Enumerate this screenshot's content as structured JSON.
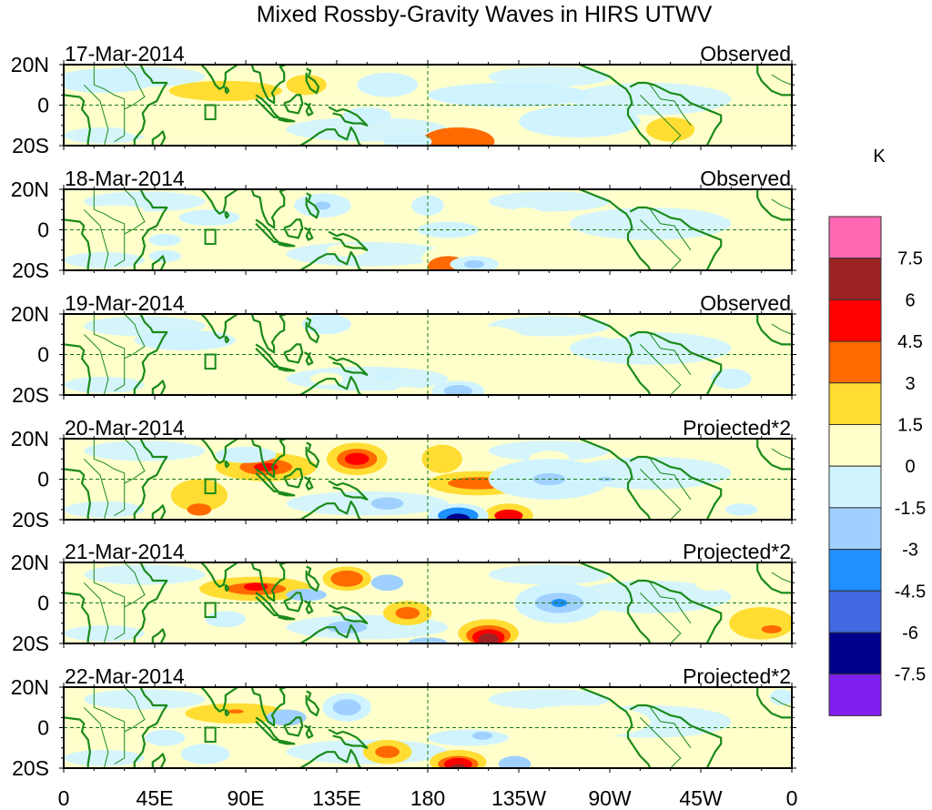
{
  "chart_data": {
    "type": "heatmap",
    "title": "Mixed Rossby-Gravity Waves in HIRS UTWV",
    "units": "K",
    "x_axis": {
      "range_deg_east": [
        0,
        360
      ],
      "tick_values": [
        0,
        45,
        90,
        135,
        180,
        225,
        270,
        315,
        360
      ],
      "tick_labels": [
        "0",
        "45E",
        "90E",
        "135E",
        "180",
        "135W",
        "90W",
        "45W",
        "0"
      ]
    },
    "y_axis": {
      "range_deg": [
        -20,
        20
      ],
      "tick_values": [
        20,
        0,
        -20
      ],
      "tick_labels": [
        "20N",
        "0",
        "20S"
      ]
    },
    "colorbar": {
      "levels": [
        "7.5",
        "6",
        "4.5",
        "3",
        "1.5",
        "0",
        "-1.5",
        "-3",
        "-4.5",
        "-6",
        "-7.5"
      ],
      "level_values": [
        7.5,
        6,
        4.5,
        3,
        1.5,
        0,
        -1.5,
        -3,
        -4.5,
        -6,
        -7.5
      ],
      "colors": [
        "#ff69b4",
        "#9b2323",
        "#ff0000",
        "#ff6a00",
        "#ffdd33",
        "#ffffcc",
        "#d0f4ff",
        "#a0d0ff",
        "#1e90ff",
        "#4169e1",
        "#00008b",
        "#8020f0"
      ]
    },
    "panels": [
      {
        "date": "17-Mar-2014",
        "kind": "Observed",
        "anomalies": [
          {
            "lon": 80,
            "lat": 7,
            "value": 2,
            "rlon": 28,
            "rlat": 5
          },
          {
            "lon": 120,
            "lat": 10,
            "value": 2,
            "rlon": 10,
            "rlat": 5
          },
          {
            "lon": 195,
            "lat": -18,
            "value": 5,
            "rlon": 12,
            "rlat": 5
          },
          {
            "lon": 195,
            "lat": -18,
            "value": 3,
            "rlon": 18,
            "rlat": 7
          },
          {
            "lon": 300,
            "lat": -12,
            "value": 2,
            "rlon": 12,
            "rlat": 6
          },
          {
            "lon": 40,
            "lat": -12,
            "value": 1,
            "rlon": 10,
            "rlat": 3
          },
          {
            "lon": 220,
            "lat": 5,
            "value": -1,
            "rlon": 40,
            "rlat": 6
          },
          {
            "lon": 160,
            "lat": 10,
            "value": -1,
            "rlon": 15,
            "rlat": 6
          },
          {
            "lon": 150,
            "lat": -5,
            "value": -1,
            "rlon": 12,
            "rlat": 4
          },
          {
            "lon": 170,
            "lat": -18,
            "value": -1,
            "rlon": 12,
            "rlat": 4
          },
          {
            "lon": 255,
            "lat": -8,
            "value": -1,
            "rlon": 30,
            "rlat": 8
          },
          {
            "lon": 20,
            "lat": 12,
            "value": -1,
            "rlon": 25,
            "rlat": 6
          }
        ]
      },
      {
        "date": "18-Mar-2014",
        "kind": "Observed",
        "anomalies": [
          {
            "lon": 25,
            "lat": 10,
            "value": 1,
            "rlon": 15,
            "rlat": 2
          },
          {
            "lon": 192,
            "lat": -14,
            "value": 1,
            "rlon": 15,
            "rlat": 6
          },
          {
            "lon": 190,
            "lat": -18,
            "value": 3,
            "rlon": 10,
            "rlat": 5
          },
          {
            "lon": 228,
            "lat": 3,
            "value": 1,
            "rlon": 12,
            "rlat": 8
          },
          {
            "lon": 140,
            "lat": -10,
            "value": 1,
            "rlon": 10,
            "rlat": 3
          },
          {
            "lon": 300,
            "lat": -12,
            "value": 1,
            "rlon": 8,
            "rlat": 3
          },
          {
            "lon": 128,
            "lat": 12,
            "value": -1,
            "rlon": 14,
            "rlat": 6
          },
          {
            "lon": 128,
            "lat": 12,
            "value": -2,
            "rlon": 4,
            "rlat": 2
          },
          {
            "lon": 72,
            "lat": 6,
            "value": -1,
            "rlon": 15,
            "rlat": 4
          },
          {
            "lon": 203,
            "lat": -17,
            "value": -1,
            "rlon": 12,
            "rlat": 4
          },
          {
            "lon": 203,
            "lat": -17,
            "value": -2,
            "rlon": 5,
            "rlat": 2
          },
          {
            "lon": 180,
            "lat": 12,
            "value": -1,
            "rlon": 8,
            "rlat": 5
          },
          {
            "lon": 190,
            "lat": 0,
            "value": -1,
            "rlon": 15,
            "rlat": 4
          },
          {
            "lon": 50,
            "lat": -5,
            "value": -1,
            "rlon": 8,
            "rlat": 3
          },
          {
            "lon": 50,
            "lat": -13,
            "value": -1,
            "rlon": 8,
            "rlat": 3
          }
        ]
      },
      {
        "date": "19-Mar-2014",
        "kind": "Observed",
        "anomalies": [
          {
            "lon": 210,
            "lat": 4,
            "value": 1,
            "rlon": 20,
            "rlat": 10
          },
          {
            "lon": 155,
            "lat": 10,
            "value": 1,
            "rlon": 6,
            "rlat": 4
          },
          {
            "lon": 170,
            "lat": -20,
            "value": 1,
            "rlon": 8,
            "rlat": 4
          },
          {
            "lon": 130,
            "lat": -12,
            "value": 1,
            "rlon": 8,
            "rlat": 3
          },
          {
            "lon": 100,
            "lat": 5,
            "value": 1,
            "rlon": 6,
            "rlat": 2
          },
          {
            "lon": 272,
            "lat": 10,
            "value": 1,
            "rlon": 8,
            "rlat": 2
          },
          {
            "lon": 195,
            "lat": -18,
            "value": -1,
            "rlon": 13,
            "rlat": 5
          },
          {
            "lon": 195,
            "lat": -18,
            "value": -2,
            "rlon": 7,
            "rlat": 3
          },
          {
            "lon": 60,
            "lat": 7,
            "value": -1,
            "rlon": 25,
            "rlat": 5
          },
          {
            "lon": 130,
            "lat": 15,
            "value": -1,
            "rlon": 12,
            "rlat": 5
          },
          {
            "lon": 160,
            "lat": -10,
            "value": -1,
            "rlon": 6,
            "rlat": 3
          },
          {
            "lon": 330,
            "lat": -12,
            "value": -1,
            "rlon": 10,
            "rlat": 5
          }
        ]
      },
      {
        "date": "20-Mar-2014",
        "kind": "Projected*2",
        "anomalies": [
          {
            "lon": 100,
            "lat": 6,
            "value": 2,
            "rlon": 25,
            "rlat": 7
          },
          {
            "lon": 100,
            "lat": 6,
            "value": 3,
            "rlon": 13,
            "rlat": 4
          },
          {
            "lon": 100,
            "lat": 6,
            "value": 4,
            "rlon": 6,
            "rlat": 2
          },
          {
            "lon": 145,
            "lat": 10,
            "value": 2,
            "rlon": 15,
            "rlat": 8
          },
          {
            "lon": 145,
            "lat": 10,
            "value": 3,
            "rlon": 10,
            "rlat": 5
          },
          {
            "lon": 145,
            "lat": 10,
            "value": 4,
            "rlon": 6,
            "rlat": 3
          },
          {
            "lon": 205,
            "lat": -2,
            "value": 2,
            "rlon": 25,
            "rlat": 6
          },
          {
            "lon": 205,
            "lat": -2,
            "value": 3,
            "rlon": 15,
            "rlat": 3
          },
          {
            "lon": 187,
            "lat": 10,
            "value": 2,
            "rlon": 10,
            "rlat": 7
          },
          {
            "lon": 220,
            "lat": -18,
            "value": 2,
            "rlon": 12,
            "rlat": 6
          },
          {
            "lon": 220,
            "lat": -18,
            "value": 4,
            "rlon": 7,
            "rlat": 3
          },
          {
            "lon": 67,
            "lat": -8,
            "value": 2,
            "rlon": 14,
            "rlat": 8
          },
          {
            "lon": 67,
            "lat": -15,
            "value": 3,
            "rlon": 6,
            "rlat": 3
          },
          {
            "lon": 240,
            "lat": 10,
            "value": 1,
            "rlon": 10,
            "rlat": 4
          },
          {
            "lon": 350,
            "lat": 15,
            "value": 1,
            "rlon": 12,
            "rlat": 5
          },
          {
            "lon": 195,
            "lat": -18,
            "value": -1,
            "rlon": 15,
            "rlat": 6
          },
          {
            "lon": 195,
            "lat": -18,
            "value": -3,
            "rlon": 10,
            "rlat": 4
          },
          {
            "lon": 195,
            "lat": -20,
            "value": -5,
            "rlon": 6,
            "rlat": 3
          },
          {
            "lon": 160,
            "lat": -12,
            "value": -2,
            "rlon": 8,
            "rlat": 3
          },
          {
            "lon": 240,
            "lat": 0,
            "value": -1,
            "rlon": 30,
            "rlat": 10
          },
          {
            "lon": 240,
            "lat": 0,
            "value": -2,
            "rlon": 8,
            "rlat": 3
          },
          {
            "lon": 268,
            "lat": 0,
            "value": -2,
            "rlon": 4,
            "rlat": 1
          },
          {
            "lon": 90,
            "lat": 12,
            "value": -1,
            "rlon": 15,
            "rlat": 4
          },
          {
            "lon": 335,
            "lat": -15,
            "value": -1,
            "rlon": 8,
            "rlat": 3
          }
        ]
      },
      {
        "date": "21-Mar-2014",
        "kind": "Projected*2",
        "anomalies": [
          {
            "lon": 95,
            "lat": 7,
            "value": 2,
            "rlon": 28,
            "rlat": 6
          },
          {
            "lon": 95,
            "lat": 7,
            "value": 3,
            "rlon": 15,
            "rlat": 3
          },
          {
            "lon": 95,
            "lat": 8,
            "value": 4,
            "rlon": 6,
            "rlat": 2
          },
          {
            "lon": 140,
            "lat": 12,
            "value": 2,
            "rlon": 12,
            "rlat": 6
          },
          {
            "lon": 140,
            "lat": 12,
            "value": 3,
            "rlon": 8,
            "rlat": 4
          },
          {
            "lon": 210,
            "lat": -15,
            "value": 2,
            "rlon": 15,
            "rlat": 7
          },
          {
            "lon": 210,
            "lat": -16,
            "value": 3,
            "rlon": 11,
            "rlat": 5
          },
          {
            "lon": 210,
            "lat": -17,
            "value": 4,
            "rlon": 8,
            "rlat": 4
          },
          {
            "lon": 210,
            "lat": -18,
            "value": 5,
            "rlon": 5,
            "rlat": 3
          },
          {
            "lon": 170,
            "lat": -5,
            "value": 2,
            "rlon": 12,
            "rlat": 6
          },
          {
            "lon": 170,
            "lat": -5,
            "value": 3,
            "rlon": 6,
            "rlat": 3
          },
          {
            "lon": 345,
            "lat": -10,
            "value": 2,
            "rlon": 16,
            "rlat": 8
          },
          {
            "lon": 350,
            "lat": -13,
            "value": 3,
            "rlon": 5,
            "rlat": 2
          },
          {
            "lon": 33,
            "lat": -8,
            "value": 1,
            "rlon": 8,
            "rlat": 3
          },
          {
            "lon": 58,
            "lat": -5,
            "value": 1,
            "rlon": 10,
            "rlat": 3
          },
          {
            "lon": 58,
            "lat": -14,
            "value": 1,
            "rlon": 10,
            "rlat": 3
          },
          {
            "lon": 180,
            "lat": 15,
            "value": 1,
            "rlon": 6,
            "rlat": 4
          },
          {
            "lon": 320,
            "lat": 10,
            "value": 1,
            "rlon": 8,
            "rlat": 4
          },
          {
            "lon": 245,
            "lat": 0,
            "value": -1,
            "rlon": 22,
            "rlat": 10
          },
          {
            "lon": 245,
            "lat": 0,
            "value": -2,
            "rlon": 12,
            "rlat": 5
          },
          {
            "lon": 245,
            "lat": 0,
            "value": -3,
            "rlon": 4,
            "rlat": 2
          },
          {
            "lon": 160,
            "lat": 10,
            "value": -2,
            "rlon": 8,
            "rlat": 4
          },
          {
            "lon": 120,
            "lat": 4,
            "value": -2,
            "rlon": 10,
            "rlat": 3
          },
          {
            "lon": 180,
            "lat": -20,
            "value": -2,
            "rlon": 10,
            "rlat": 3
          },
          {
            "lon": 80,
            "lat": -8,
            "value": -1,
            "rlon": 10,
            "rlat": 4
          },
          {
            "lon": 140,
            "lat": -12,
            "value": -2,
            "rlon": 10,
            "rlat": 3
          }
        ]
      },
      {
        "date": "22-Mar-2014",
        "kind": "Projected*2",
        "anomalies": [
          {
            "lon": 85,
            "lat": 7,
            "value": 2,
            "rlon": 25,
            "rlat": 5
          },
          {
            "lon": 85,
            "lat": 8,
            "value": 3,
            "rlon": 4,
            "rlat": 1
          },
          {
            "lon": 160,
            "lat": -12,
            "value": 2,
            "rlon": 12,
            "rlat": 6
          },
          {
            "lon": 160,
            "lat": -12,
            "value": 3,
            "rlon": 6,
            "rlat": 3
          },
          {
            "lon": 195,
            "lat": -17,
            "value": 2,
            "rlon": 14,
            "rlat": 6
          },
          {
            "lon": 195,
            "lat": -18,
            "value": 3,
            "rlon": 10,
            "rlat": 4
          },
          {
            "lon": 195,
            "lat": -18,
            "value": 4,
            "rlon": 7,
            "rlat": 3
          },
          {
            "lon": 195,
            "lat": -20,
            "value": 5,
            "rlon": 4,
            "rlat": 2
          },
          {
            "lon": 255,
            "lat": 3,
            "value": 1,
            "rlon": 35,
            "rlat": 8
          },
          {
            "lon": 132,
            "lat": 18,
            "value": 1,
            "rlon": 10,
            "rlat": 4
          },
          {
            "lon": 180,
            "lat": 10,
            "value": 1,
            "rlon": 8,
            "rlat": 4
          },
          {
            "lon": 340,
            "lat": -12,
            "value": 1,
            "rlon": 10,
            "rlat": 4
          },
          {
            "lon": 140,
            "lat": 10,
            "value": -1,
            "rlon": 12,
            "rlat": 7
          },
          {
            "lon": 140,
            "lat": 10,
            "value": -2,
            "rlon": 7,
            "rlat": 4
          },
          {
            "lon": 110,
            "lat": 5,
            "value": -2,
            "rlon": 10,
            "rlat": 4
          },
          {
            "lon": 223,
            "lat": -18,
            "value": -2,
            "rlon": 8,
            "rlat": 4
          },
          {
            "lon": 200,
            "lat": -5,
            "value": -1,
            "rlon": 20,
            "rlat": 4
          },
          {
            "lon": 207,
            "lat": -4,
            "value": -2,
            "rlon": 5,
            "rlat": 2
          },
          {
            "lon": 50,
            "lat": -5,
            "value": -1,
            "rlon": 10,
            "rlat": 4
          },
          {
            "lon": 70,
            "lat": -13,
            "value": -1,
            "rlon": 12,
            "rlat": 5
          },
          {
            "lon": 355,
            "lat": 15,
            "value": -1,
            "rlon": 6,
            "rlat": 4
          }
        ]
      }
    ]
  }
}
